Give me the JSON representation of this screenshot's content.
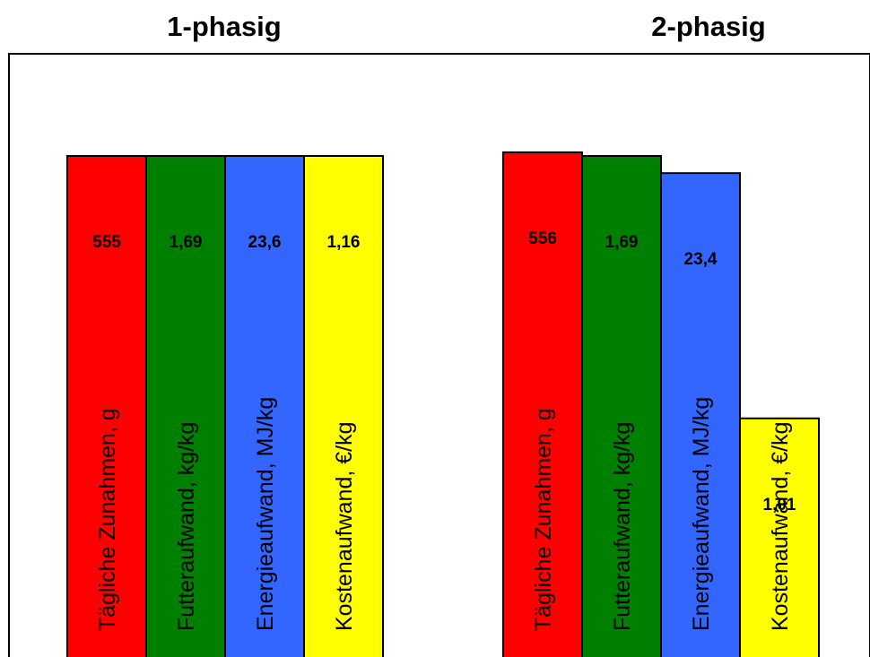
{
  "chart_data": {
    "type": "bar",
    "categories": [
      "Tägliche Zunahmen, g",
      "Futteraufwand, kg/kg",
      "Energieaufwand, MJ/kg",
      "Kostenaufwand, €/kg"
    ],
    "colors": [
      "#ff0000",
      "#008000",
      "#3366ff",
      "#ffff00"
    ],
    "relative_scale": "bar height relative to the 1-phasig value of the same category",
    "groups": [
      {
        "title": "1-phasig",
        "values": [
          555,
          1.69,
          23.6,
          1.16
        ],
        "labels": [
          "555",
          "1,69",
          "23,6",
          "1,16"
        ]
      },
      {
        "title": "2-phasig",
        "values": [
          556,
          1.69,
          23.4,
          1.01
        ],
        "labels": [
          "556",
          "1,69",
          "23,4",
          "1,01"
        ]
      }
    ]
  }
}
